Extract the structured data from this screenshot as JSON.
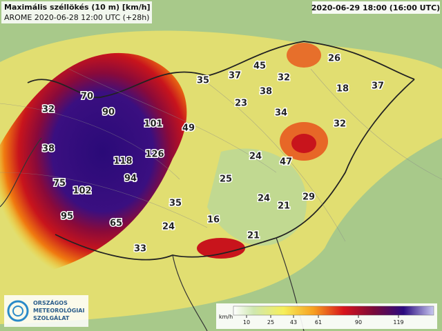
{
  "header": {
    "title": "Maximális széllökés (10 m) [km/h]",
    "subtitle": "AROME 2020-06-28 12:00 UTC (+28h)",
    "valid_time": "2020-06-29 18:00 (16:00 UTC)"
  },
  "map_labels": [
    70,
    90,
    32,
    101,
    49,
    38,
    118,
    126,
    94,
    75,
    102,
    95,
    65,
    35,
    24,
    33,
    16,
    21,
    35,
    37,
    45,
    32,
    26,
    18,
    37,
    38,
    23,
    34,
    32,
    24,
    47,
    25,
    24,
    21,
    29
  ],
  "legend": {
    "unit": "km/h",
    "ticks": [
      10,
      25,
      43,
      61,
      90,
      119
    ]
  },
  "logo": {
    "line1": "ORSZÁGOS",
    "line2": "METEOROLÓGIAI",
    "line3": "SZOLGÁLAT"
  }
}
